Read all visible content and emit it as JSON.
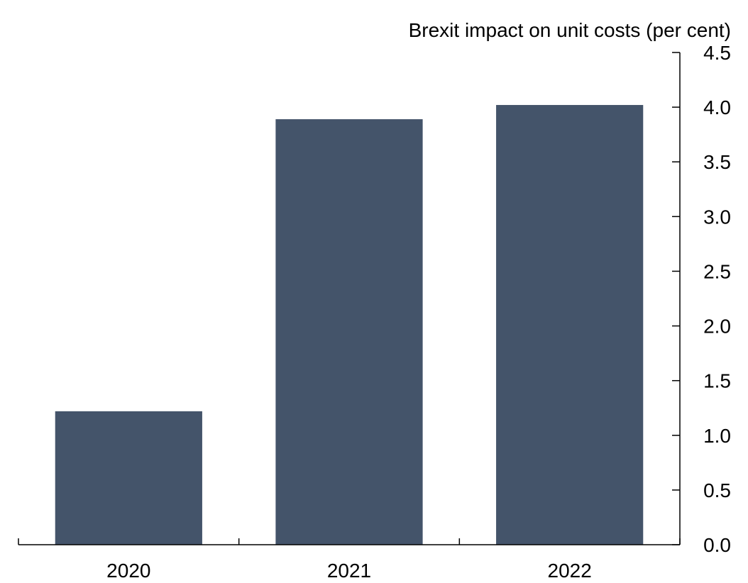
{
  "chart_data": {
    "type": "bar",
    "title": "",
    "xlabel": "",
    "ylabel": "Brexit impact on unit costs (per cent)",
    "categories": [
      "2020",
      "2021",
      "2022"
    ],
    "values": [
      1.22,
      3.89,
      4.02
    ],
    "ylim": [
      0,
      4.5
    ],
    "yticks": [
      "0.0",
      "0.5",
      "1.0",
      "1.5",
      "2.0",
      "2.5",
      "3.0",
      "3.5",
      "4.0",
      "4.5"
    ],
    "y_axis_side": "right",
    "grid": false,
    "legend": "none",
    "bar_color": "#44546a",
    "axis_color": "#000000"
  }
}
